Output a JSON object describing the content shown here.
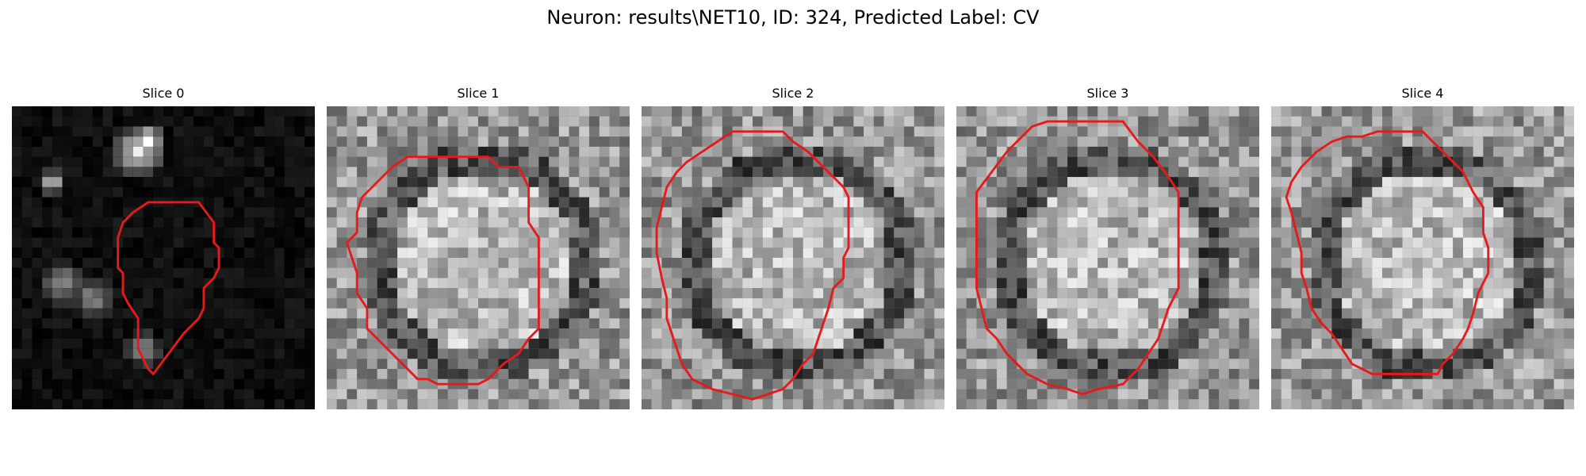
{
  "figure": {
    "title": "Neuron: results\\NET10, ID: 324, Predicted Label: CV"
  },
  "contour_color": "#e8191b",
  "slices": [
    {
      "title": "Slice 0",
      "background": "#040404",
      "contour": [
        [
          32,
          19
        ],
        [
          37,
          19
        ],
        [
          40,
          23
        ],
        [
          40,
          27
        ],
        [
          41,
          28
        ],
        [
          41,
          32
        ],
        [
          40,
          34
        ],
        [
          38,
          36
        ],
        [
          38,
          40
        ],
        [
          37,
          42
        ],
        [
          34,
          45
        ],
        [
          31,
          49
        ],
        [
          28,
          53
        ],
        [
          27,
          52
        ],
        [
          25,
          48
        ],
        [
          25,
          42
        ],
        [
          23,
          39
        ],
        [
          22,
          37
        ],
        [
          22,
          33
        ],
        [
          21,
          32
        ],
        [
          21,
          26
        ],
        [
          22,
          23
        ],
        [
          24,
          21
        ],
        [
          27,
          19
        ]
      ]
    },
    {
      "title": "Slice 1",
      "background": "#8c8c8c",
      "contour": [
        [
          21,
          10
        ],
        [
          32,
          10
        ],
        [
          34,
          12
        ],
        [
          38,
          12
        ],
        [
          40,
          16
        ],
        [
          40,
          23
        ],
        [
          42,
          26
        ],
        [
          42,
          44
        ],
        [
          40,
          46
        ],
        [
          38,
          49
        ],
        [
          35,
          51
        ],
        [
          33,
          53
        ],
        [
          32,
          54
        ],
        [
          30,
          55
        ],
        [
          22,
          55
        ],
        [
          20,
          54
        ],
        [
          18,
          54
        ],
        [
          15,
          51
        ],
        [
          13,
          49
        ],
        [
          10,
          46
        ],
        [
          8,
          44
        ],
        [
          8,
          40
        ],
        [
          6,
          37
        ],
        [
          6,
          33
        ],
        [
          5,
          30
        ],
        [
          4,
          27
        ],
        [
          6,
          25
        ],
        [
          6,
          21
        ],
        [
          7,
          18
        ],
        [
          9,
          16
        ],
        [
          11,
          14
        ],
        [
          13,
          12
        ],
        [
          16,
          10
        ]
      ]
    },
    {
      "title": "Slice 2",
      "background": "#8a8a8a",
      "contour": [
        [
          18,
          5
        ],
        [
          28,
          5
        ],
        [
          30,
          7
        ],
        [
          33,
          9
        ],
        [
          36,
          12
        ],
        [
          38,
          14
        ],
        [
          40,
          16
        ],
        [
          41,
          18
        ],
        [
          41,
          28
        ],
        [
          40,
          30
        ],
        [
          40,
          34
        ],
        [
          38,
          36
        ],
        [
          37,
          40
        ],
        [
          36,
          43
        ],
        [
          35,
          46
        ],
        [
          34,
          49
        ],
        [
          32,
          51
        ],
        [
          30,
          54
        ],
        [
          28,
          56
        ],
        [
          25,
          57
        ],
        [
          22,
          58
        ],
        [
          18,
          57
        ],
        [
          14,
          56
        ],
        [
          10,
          54
        ],
        [
          8,
          51
        ],
        [
          7,
          48
        ],
        [
          6,
          45
        ],
        [
          5,
          42
        ],
        [
          5,
          38
        ],
        [
          4,
          34
        ],
        [
          3,
          29
        ],
        [
          3,
          24
        ],
        [
          4,
          20
        ],
        [
          5,
          16
        ],
        [
          7,
          13
        ],
        [
          9,
          11
        ],
        [
          12,
          9
        ],
        [
          15,
          7
        ]
      ]
    },
    {
      "title": "Slice 3",
      "background": "#8b8b8b",
      "contour": [
        [
          18,
          3
        ],
        [
          33,
          3
        ],
        [
          36,
          7
        ],
        [
          39,
          10
        ],
        [
          42,
          14
        ],
        [
          44,
          17
        ],
        [
          44,
          36
        ],
        [
          42,
          40
        ],
        [
          41,
          43
        ],
        [
          40,
          46
        ],
        [
          38,
          49
        ],
        [
          36,
          52
        ],
        [
          33,
          55
        ],
        [
          28,
          56
        ],
        [
          25,
          57
        ],
        [
          22,
          56
        ],
        [
          18,
          55
        ],
        [
          14,
          53
        ],
        [
          12,
          51
        ],
        [
          10,
          49
        ],
        [
          8,
          46
        ],
        [
          6,
          44
        ],
        [
          5,
          40
        ],
        [
          4,
          36
        ],
        [
          4,
          17
        ],
        [
          7,
          13
        ],
        [
          10,
          9
        ],
        [
          13,
          6
        ],
        [
          15,
          4
        ]
      ]
    },
    {
      "title": "Slice 4",
      "background": "#8e8e8e",
      "contour": [
        [
          26,
          5
        ],
        [
          30,
          5
        ],
        [
          32,
          7
        ],
        [
          35,
          10
        ],
        [
          38,
          13
        ],
        [
          40,
          17
        ],
        [
          42,
          20
        ],
        [
          42,
          25
        ],
        [
          43,
          28
        ],
        [
          43,
          33
        ],
        [
          41,
          37
        ],
        [
          40,
          41
        ],
        [
          39,
          44
        ],
        [
          38,
          46
        ],
        [
          36,
          49
        ],
        [
          34,
          51
        ],
        [
          33,
          53
        ],
        [
          29,
          53
        ],
        [
          24,
          53
        ],
        [
          20,
          53
        ],
        [
          16,
          51
        ],
        [
          14,
          48
        ],
        [
          12,
          45
        ],
        [
          10,
          43
        ],
        [
          8,
          40
        ],
        [
          7,
          36
        ],
        [
          6,
          33
        ],
        [
          6,
          29
        ],
        [
          5,
          25
        ],
        [
          4,
          21
        ],
        [
          3,
          18
        ],
        [
          4,
          15
        ],
        [
          6,
          12
        ],
        [
          9,
          9
        ],
        [
          12,
          7
        ],
        [
          15,
          6
        ],
        [
          18,
          6
        ],
        [
          21,
          5
        ]
      ]
    }
  ]
}
